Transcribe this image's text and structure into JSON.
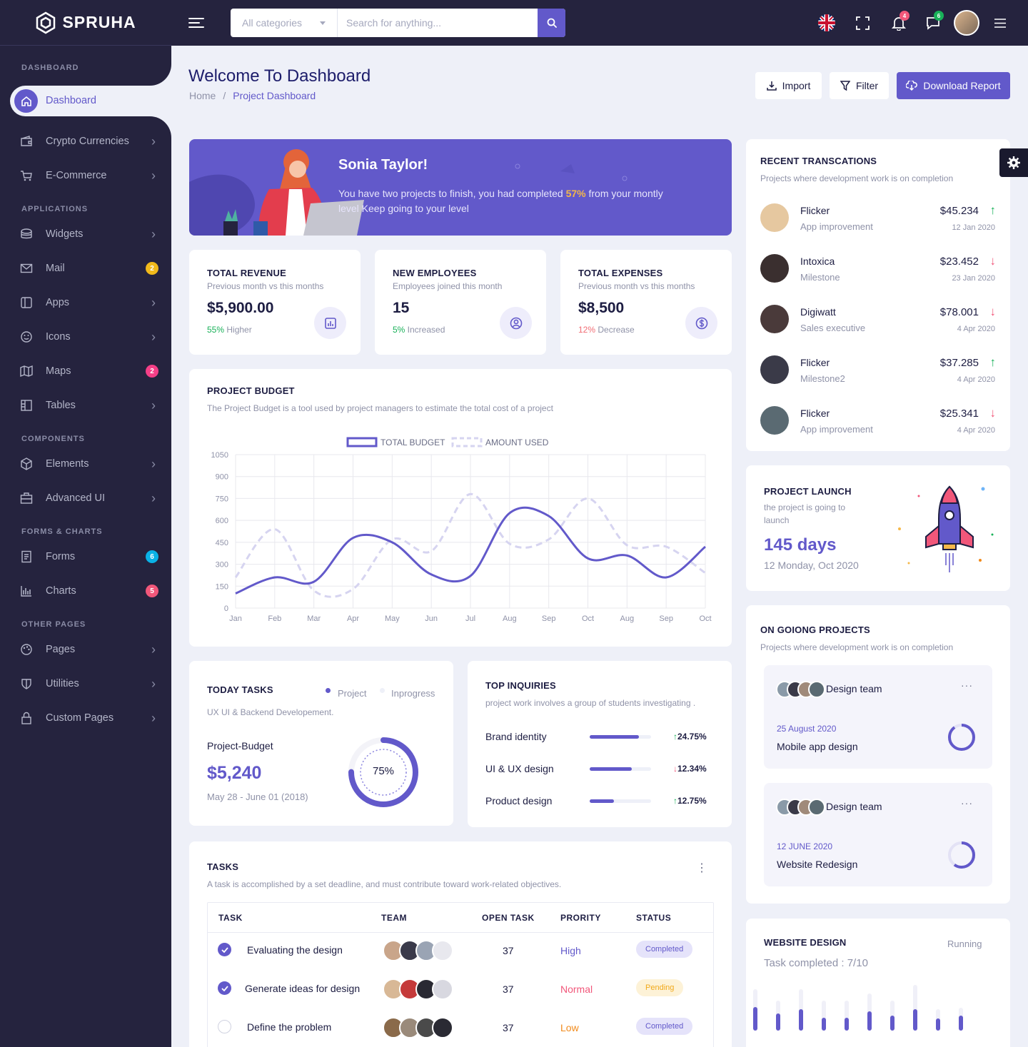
{
  "brand": {
    "name": "SPRUHA"
  },
  "sidebar": {
    "sections": [
      "DASHBOARD",
      "APPLICATIONS",
      "COMPONENTS",
      "FORMS & CHARTS",
      "OTHER PAGES"
    ],
    "items": [
      {
        "label": "Dashboard",
        "icon": "home-icon"
      },
      {
        "label": "Crypto Currencies",
        "icon": "wallet-icon"
      },
      {
        "label": "E-Commerce",
        "icon": "cart-icon"
      },
      {
        "label": "Widgets",
        "icon": "layers-icon"
      },
      {
        "label": "Mail",
        "icon": "mail-icon",
        "badge": "2",
        "badge_color": "#f1b91b"
      },
      {
        "label": "Apps",
        "icon": "apps-icon"
      },
      {
        "label": "Icons",
        "icon": "smile-icon"
      },
      {
        "label": "Maps",
        "icon": "map-icon",
        "badge": "2",
        "badge_color": "#f43f87"
      },
      {
        "label": "Tables",
        "icon": "table-icon"
      },
      {
        "label": "Elements",
        "icon": "cube-icon"
      },
      {
        "label": "Advanced UI",
        "icon": "briefcase-icon"
      },
      {
        "label": "Forms",
        "icon": "form-icon",
        "badge": "6",
        "badge_color": "#0ab2e6"
      },
      {
        "label": "Charts",
        "icon": "chart-icon",
        "badge": "5",
        "badge_color": "#f1577a"
      },
      {
        "label": "Pages",
        "icon": "palette-icon"
      },
      {
        "label": "Utilities",
        "icon": "shield-icon"
      },
      {
        "label": "Custom Pages",
        "icon": "lock-icon"
      }
    ]
  },
  "header": {
    "category_label": "All categories",
    "search_placeholder": "Search for anything...",
    "notifications_count": "4",
    "messages_count": "6"
  },
  "page": {
    "title": "Welcome To Dashboard",
    "breadcrumb": [
      "Home",
      "/",
      "Project Dashboard"
    ],
    "buttons": {
      "import": "Import",
      "filter": "Filter",
      "download": "Download Report"
    }
  },
  "welcome": {
    "name": "Sonia Taylor!",
    "line1_a": "You have two projects to finish, you had completed ",
    "percent": "57%",
    "line1_b": " from your montly",
    "line2": "level Keep going to your level"
  },
  "stats": [
    {
      "title": "TOTAL REVENUE",
      "sub": "Previous month vs this months",
      "value": "$5,900.00",
      "delta": "55%",
      "delta_text": " Higher",
      "delta_color": "#19b159"
    },
    {
      "title": "NEW EMPLOYEES",
      "sub": "Employees joined this month",
      "value": "15",
      "delta": "5%",
      "delta_text": " Increased",
      "delta_color": "#19b159"
    },
    {
      "title": "TOTAL EXPENSES",
      "sub": "Previous month vs this months",
      "value": "$8,500",
      "delta": "12%",
      "delta_text": " Decrease",
      "delta_color": "#f16d75"
    }
  ],
  "budget": {
    "title": "PROJECT BUDGET",
    "sub": "The Project Budget is a tool used by project managers to estimate the total cost of a project"
  },
  "chart_data": {
    "type": "line",
    "categories": [
      "Jan",
      "Feb",
      "Mar",
      "Apr",
      "May",
      "Jun",
      "Jul",
      "Aug",
      "Sep",
      "Oct",
      "Aug",
      "Sep",
      "Oct"
    ],
    "series": [
      {
        "name": "TOTAL BUDGET",
        "values": [
          100,
          210,
          180,
          480,
          450,
          230,
          220,
          650,
          630,
          340,
          360,
          210,
          420
        ]
      },
      {
        "name": "AMOUNT USED",
        "values": [
          210,
          540,
          120,
          130,
          470,
          390,
          780,
          440,
          470,
          750,
          430,
          420,
          240
        ]
      }
    ],
    "ylim": [
      0,
      1050
    ],
    "yticks": [
      0,
      150,
      300,
      450,
      600,
      750,
      900,
      1050
    ],
    "grid": true,
    "legend": "top-center"
  },
  "today_tasks": {
    "title": "TODAY TASKS",
    "legend": [
      "Project",
      "Inprogress"
    ],
    "sub": "UX UI & Backend Developement.",
    "label": "Project-Budget",
    "value": "$5,240",
    "date": "May 28 - June 01 (2018)",
    "progress": 0.75,
    "progress_text": "75%"
  },
  "inquiries": {
    "title": "TOP INQUIRIES",
    "sub": "project work involves a group of students investigating .",
    "items": [
      {
        "label": "Brand identity",
        "value": 0.8,
        "delta": "24.75%",
        "dir": "up"
      },
      {
        "label": "UI & UX design",
        "value": 0.69,
        "delta": "12.34%",
        "dir": "down"
      },
      {
        "label": "Product design",
        "value": 0.4,
        "delta": "12.75%",
        "dir": "up"
      }
    ]
  },
  "tasks": {
    "title": "TASKS",
    "sub": "A task is accomplished by a set deadline, and must contribute toward work-related objectives.",
    "columns": [
      "TASK",
      "TEAM",
      "OPEN TASK",
      "PRORITY",
      "STATUS"
    ],
    "rows": [
      {
        "task": "Evaluating the design",
        "checked": true,
        "open": "37",
        "priority": "High",
        "priority_color": "#6259ca",
        "status": "Completed",
        "status_bg": "#e5e3fa",
        "status_color": "#6259ca"
      },
      {
        "task": "Generate ideas for design",
        "checked": true,
        "open": "37",
        "priority": "Normal",
        "priority_color": "#f1577a",
        "status": "Pending",
        "status_bg": "#fdf2d7",
        "status_color": "#f1a91b"
      },
      {
        "task": "Define the problem",
        "checked": false,
        "open": "37",
        "priority": "Low",
        "priority_color": "#f18a1b",
        "status": "Completed",
        "status_bg": "#e5e3fa",
        "status_color": "#6259ca"
      }
    ]
  },
  "transactions": {
    "title": "RECENT TRANSCATIONS",
    "sub": "Projects where development work is on completion",
    "items": [
      {
        "name": "Flicker",
        "desc": "App improvement",
        "amount": "$45.234",
        "date": "12 Jan 2020",
        "dir": "up"
      },
      {
        "name": "Intoxica",
        "desc": "Milestone",
        "amount": "$23.452",
        "date": "23 Jan 2020",
        "dir": "down"
      },
      {
        "name": "Digiwatt",
        "desc": "Sales executive",
        "amount": "$78.001",
        "date": "4 Apr 2020",
        "dir": "down"
      },
      {
        "name": "Flicker",
        "desc": "Milestone2",
        "amount": "$37.285",
        "date": "4 Apr 2020",
        "dir": "up"
      },
      {
        "name": "Flicker",
        "desc": "App improvement",
        "amount": "$25.341",
        "date": "4 Apr 2020",
        "dir": "down"
      }
    ]
  },
  "launch": {
    "title": "PROJECT LAUNCH",
    "sub1": "the project is going to",
    "sub2": "launch",
    "days": "145 days",
    "date": "12 Monday, Oct 2020"
  },
  "ongoing": {
    "title": "ON GOIONG PROJECTS",
    "sub": "Projects where development work is on completion",
    "items": [
      {
        "team": "Design team",
        "date": "25 August 2020",
        "name": "Mobile app design",
        "progress": 0.9
      },
      {
        "team": "Design team",
        "date": "12 JUNE 2020",
        "name": "Website Redesign",
        "progress": 0.6
      }
    ]
  },
  "website": {
    "title": "WEBSITE DESIGN",
    "status": "Running",
    "completed": "Task completed : 7/10",
    "bars": [
      0.55,
      0.4,
      0.5,
      0.3,
      0.3,
      0.45,
      0.35,
      0.5,
      0.28,
      0.35
    ]
  },
  "colors": {
    "primary": "#6259ca",
    "sidebar": "#25233e",
    "bg": "#eef0f8"
  }
}
